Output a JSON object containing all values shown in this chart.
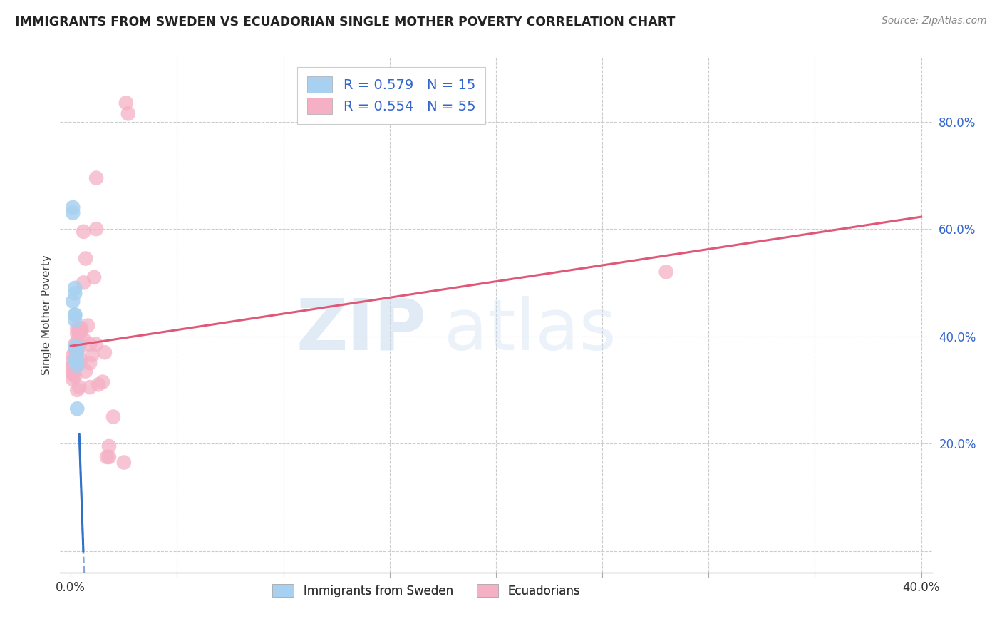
{
  "title": "IMMIGRANTS FROM SWEDEN VS ECUADORIAN SINGLE MOTHER POVERTY CORRELATION CHART",
  "source": "Source: ZipAtlas.com",
  "ylabel": "Single Mother Poverty",
  "sweden_R": 0.579,
  "sweden_N": 15,
  "ecuador_R": 0.554,
  "ecuador_N": 55,
  "sweden_color": "#A8D0F0",
  "ecuador_color": "#F5B0C5",
  "sweden_line_color": "#3070C8",
  "ecuador_line_color": "#E05878",
  "xmin": 0.0,
  "xmax": 0.4,
  "ymin": 0.0,
  "ymax": 0.9,
  "right_yticks": [
    0.0,
    0.2,
    0.4,
    0.6,
    0.8
  ],
  "right_ylabels": [
    "",
    "20.0%",
    "40.0%",
    "60.0%",
    "80.0%"
  ],
  "xtick_positions": [
    0.0,
    0.05,
    0.1,
    0.15,
    0.2,
    0.25,
    0.3,
    0.35,
    0.4
  ],
  "sweden_points": [
    [
      0.001,
      0.465
    ],
    [
      0.001,
      0.63
    ],
    [
      0.001,
      0.64
    ],
    [
      0.002,
      0.48
    ],
    [
      0.002,
      0.49
    ],
    [
      0.002,
      0.44
    ],
    [
      0.002,
      0.44
    ],
    [
      0.002,
      0.43
    ],
    [
      0.002,
      0.38
    ],
    [
      0.002,
      0.355
    ],
    [
      0.003,
      0.355
    ],
    [
      0.003,
      0.38
    ],
    [
      0.003,
      0.37
    ],
    [
      0.003,
      0.345
    ],
    [
      0.003,
      0.265
    ]
  ],
  "ecuador_points": [
    [
      0.001,
      0.365
    ],
    [
      0.001,
      0.355
    ],
    [
      0.001,
      0.345
    ],
    [
      0.001,
      0.345
    ],
    [
      0.001,
      0.34
    ],
    [
      0.001,
      0.33
    ],
    [
      0.001,
      0.33
    ],
    [
      0.001,
      0.32
    ],
    [
      0.002,
      0.385
    ],
    [
      0.002,
      0.375
    ],
    [
      0.002,
      0.365
    ],
    [
      0.002,
      0.35
    ],
    [
      0.002,
      0.35
    ],
    [
      0.002,
      0.34
    ],
    [
      0.002,
      0.325
    ],
    [
      0.003,
      0.415
    ],
    [
      0.003,
      0.405
    ],
    [
      0.003,
      0.39
    ],
    [
      0.003,
      0.37
    ],
    [
      0.003,
      0.355
    ],
    [
      0.003,
      0.3
    ],
    [
      0.004,
      0.415
    ],
    [
      0.004,
      0.41
    ],
    [
      0.004,
      0.405
    ],
    [
      0.004,
      0.38
    ],
    [
      0.004,
      0.35
    ],
    [
      0.004,
      0.305
    ],
    [
      0.005,
      0.415
    ],
    [
      0.005,
      0.41
    ],
    [
      0.005,
      0.355
    ],
    [
      0.006,
      0.595
    ],
    [
      0.006,
      0.5
    ],
    [
      0.006,
      0.395
    ],
    [
      0.007,
      0.545
    ],
    [
      0.007,
      0.335
    ],
    [
      0.008,
      0.42
    ],
    [
      0.009,
      0.385
    ],
    [
      0.009,
      0.35
    ],
    [
      0.009,
      0.305
    ],
    [
      0.01,
      0.365
    ],
    [
      0.011,
      0.51
    ],
    [
      0.012,
      0.385
    ],
    [
      0.012,
      0.6
    ],
    [
      0.012,
      0.695
    ],
    [
      0.013,
      0.31
    ],
    [
      0.015,
      0.315
    ],
    [
      0.016,
      0.37
    ],
    [
      0.017,
      0.175
    ],
    [
      0.018,
      0.175
    ],
    [
      0.018,
      0.195
    ],
    [
      0.02,
      0.25
    ],
    [
      0.025,
      0.165
    ],
    [
      0.026,
      0.835
    ],
    [
      0.027,
      0.815
    ],
    [
      0.28,
      0.52
    ]
  ],
  "watermark_zip_color": "#C8DCF0",
  "watermark_atlas_color": "#C8DCF0"
}
